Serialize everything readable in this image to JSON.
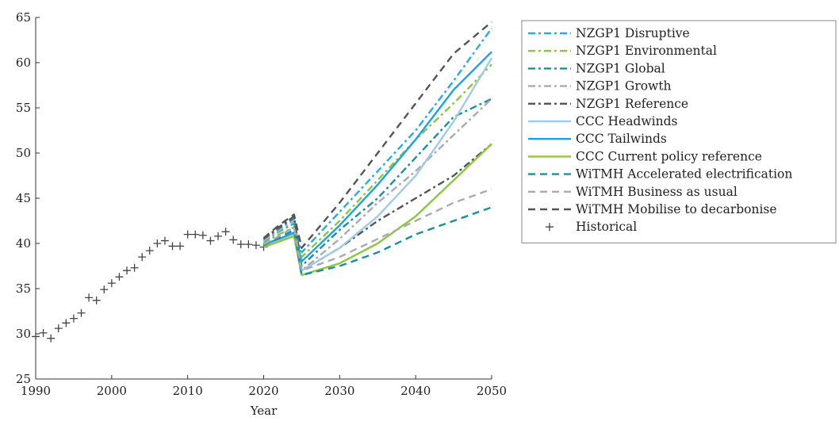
{
  "chart_data": {
    "type": "line",
    "xlabel": "Year",
    "ylabel": "",
    "xlim": [
      1990,
      2050
    ],
    "ylim": [
      25,
      65
    ],
    "x_ticks": [
      1990,
      2000,
      2010,
      2020,
      2030,
      2040,
      2050
    ],
    "y_ticks": [
      25,
      30,
      35,
      40,
      45,
      50,
      55,
      60,
      65
    ],
    "grid": false,
    "legend_position": "right",
    "historical": {
      "name": "Historical",
      "marker": "+",
      "color": "#444444",
      "points": [
        [
          1990,
          29.7
        ],
        [
          1991,
          30.1
        ],
        [
          1992,
          29.5
        ],
        [
          1993,
          30.6
        ],
        [
          1994,
          31.2
        ],
        [
          1995,
          31.7
        ],
        [
          1996,
          32.3
        ],
        [
          1997,
          34.0
        ],
        [
          1998,
          33.7
        ],
        [
          1999,
          34.9
        ],
        [
          2000,
          35.6
        ],
        [
          2001,
          36.3
        ],
        [
          2002,
          37.0
        ],
        [
          2003,
          37.3
        ],
        [
          2004,
          38.5
        ],
        [
          2005,
          39.2
        ],
        [
          2006,
          40.0
        ],
        [
          2007,
          40.3
        ],
        [
          2008,
          39.7
        ],
        [
          2009,
          39.7
        ],
        [
          2010,
          41.0
        ],
        [
          2011,
          41.0
        ],
        [
          2012,
          40.9
        ],
        [
          2013,
          40.3
        ],
        [
          2014,
          40.8
        ],
        [
          2015,
          41.3
        ],
        [
          2016,
          40.4
        ],
        [
          2017,
          39.9
        ],
        [
          2018,
          39.9
        ],
        [
          2019,
          39.8
        ],
        [
          2020,
          39.6
        ]
      ]
    },
    "series": [
      {
        "name": "NZGP1 Disruptive",
        "color": "#29ABE2",
        "dash": "dashdot",
        "points": [
          [
            2020,
            40.2
          ],
          [
            2022,
            41.3
          ],
          [
            2024,
            42.2
          ],
          [
            2025,
            39.0
          ],
          [
            2030,
            43.5
          ],
          [
            2035,
            48.0
          ],
          [
            2040,
            52.5
          ],
          [
            2045,
            58.0
          ],
          [
            2050,
            63.8
          ]
        ]
      },
      {
        "name": "NZGP1 Environmental",
        "color": "#8CC63F",
        "dash": "dashdot",
        "points": [
          [
            2020,
            40.0
          ],
          [
            2022,
            41.0
          ],
          [
            2024,
            41.8
          ],
          [
            2025,
            38.5
          ],
          [
            2030,
            42.5
          ],
          [
            2035,
            47.0
          ],
          [
            2040,
            51.5
          ],
          [
            2045,
            55.5
          ],
          [
            2050,
            59.8
          ]
        ]
      },
      {
        "name": "NZGP1 Global",
        "color": "#1A8FA0",
        "dash": "dashdot",
        "points": [
          [
            2020,
            40.4
          ],
          [
            2022,
            41.6
          ],
          [
            2024,
            42.8
          ],
          [
            2025,
            37.5
          ],
          [
            2030,
            41.5
          ],
          [
            2035,
            45.0
          ],
          [
            2040,
            49.5
          ],
          [
            2045,
            54.0
          ],
          [
            2050,
            56.0
          ]
        ]
      },
      {
        "name": "NZGP1 Growth",
        "color": "#A9A9B8",
        "dash": "dashdot",
        "points": [
          [
            2020,
            40.3
          ],
          [
            2022,
            41.4
          ],
          [
            2024,
            42.5
          ],
          [
            2025,
            37.0
          ],
          [
            2030,
            40.5
          ],
          [
            2035,
            44.5
          ],
          [
            2040,
            48.0
          ],
          [
            2045,
            52.0
          ],
          [
            2050,
            56.0
          ]
        ]
      },
      {
        "name": "NZGP1 Reference",
        "color": "#555555",
        "dash": "dashdot",
        "points": [
          [
            2020,
            40.5
          ],
          [
            2022,
            41.8
          ],
          [
            2024,
            43.0
          ],
          [
            2025,
            37.0
          ],
          [
            2030,
            39.5
          ],
          [
            2035,
            42.5
          ],
          [
            2040,
            45.0
          ],
          [
            2045,
            47.5
          ],
          [
            2050,
            51.0
          ]
        ]
      },
      {
        "name": "CCC Headwinds",
        "color": "#9FCBE8",
        "dash": "solid",
        "points": [
          [
            2020,
            39.8
          ],
          [
            2022,
            40.4
          ],
          [
            2024,
            41.0
          ],
          [
            2025,
            37.0
          ],
          [
            2030,
            39.5
          ],
          [
            2035,
            43.0
          ],
          [
            2040,
            47.5
          ],
          [
            2045,
            53.5
          ],
          [
            2050,
            60.5
          ]
        ]
      },
      {
        "name": "CCC Tailwinds",
        "color": "#1AA3DE",
        "dash": "solid",
        "points": [
          [
            2020,
            39.9
          ],
          [
            2022,
            40.5
          ],
          [
            2024,
            41.2
          ],
          [
            2025,
            38.0
          ],
          [
            2030,
            42.0
          ],
          [
            2035,
            46.5
          ],
          [
            2040,
            51.5
          ],
          [
            2045,
            57.0
          ],
          [
            2050,
            61.2
          ]
        ]
      },
      {
        "name": "CCC Current policy reference",
        "color": "#8DC63F",
        "dash": "solid",
        "points": [
          [
            2020,
            39.6
          ],
          [
            2022,
            40.2
          ],
          [
            2024,
            40.8
          ],
          [
            2025,
            36.5
          ],
          [
            2030,
            37.8
          ],
          [
            2035,
            40.0
          ],
          [
            2040,
            43.0
          ],
          [
            2045,
            47.0
          ],
          [
            2050,
            51.0
          ]
        ]
      },
      {
        "name": "WiTMH Accelerated electrification",
        "color": "#1A8FA0",
        "dash": "dash",
        "points": [
          [
            2020,
            39.8
          ],
          [
            2022,
            40.6
          ],
          [
            2024,
            41.5
          ],
          [
            2025,
            36.5
          ],
          [
            2030,
            37.5
          ],
          [
            2035,
            39.0
          ],
          [
            2040,
            41.0
          ],
          [
            2045,
            42.5
          ],
          [
            2050,
            44.0
          ]
        ]
      },
      {
        "name": "WiTMH Business as usual",
        "color": "#A9A9B8",
        "dash": "dash",
        "points": [
          [
            2020,
            39.9
          ],
          [
            2022,
            40.8
          ],
          [
            2024,
            41.8
          ],
          [
            2025,
            37.0
          ],
          [
            2030,
            38.5
          ],
          [
            2035,
            40.5
          ],
          [
            2040,
            42.5
          ],
          [
            2045,
            44.5
          ],
          [
            2050,
            46.0
          ]
        ]
      },
      {
        "name": "WiTMH Mobilise to decarbonise",
        "color": "#555555",
        "dash": "dash",
        "points": [
          [
            2020,
            40.6
          ],
          [
            2022,
            42.0
          ],
          [
            2024,
            43.2
          ],
          [
            2025,
            39.5
          ],
          [
            2030,
            44.5
          ],
          [
            2035,
            50.0
          ],
          [
            2040,
            55.5
          ],
          [
            2045,
            61.0
          ],
          [
            2050,
            64.5
          ]
        ]
      }
    ]
  }
}
